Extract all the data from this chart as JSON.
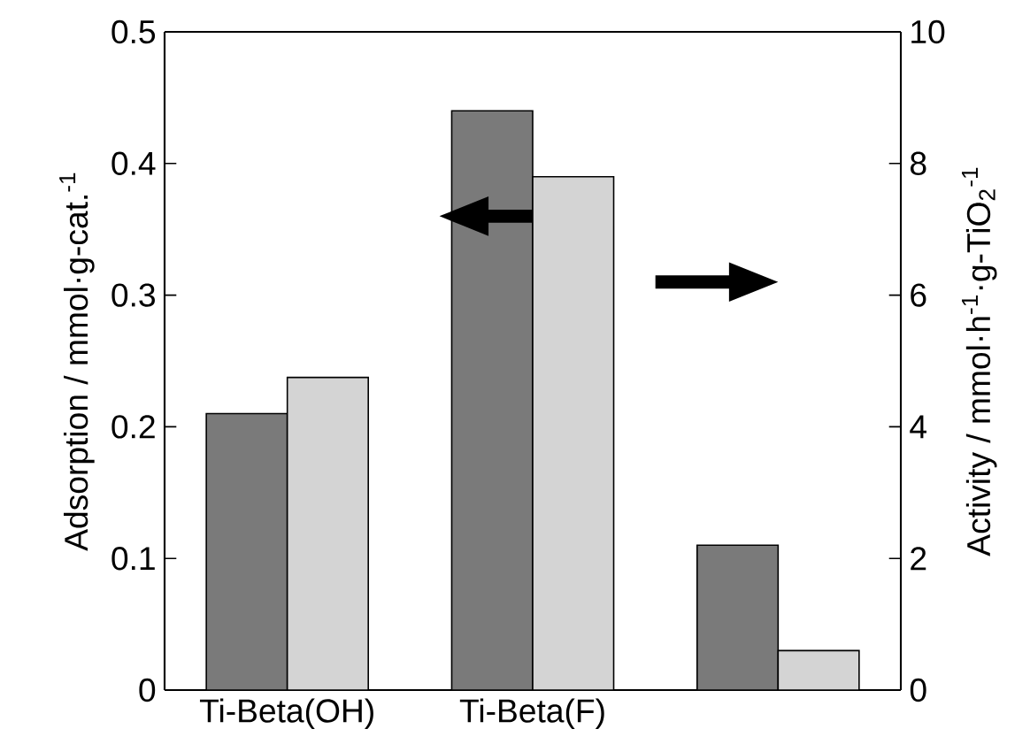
{
  "chart_data": {
    "type": "bar",
    "categories": [
      "Ti-Beta(OH)",
      "Ti-Beta(F)",
      null
    ],
    "series": [
      {
        "color": "#7a7a7a",
        "values": [
          0.21,
          0.44,
          0.11
        ]
      },
      {
        "color": "#d4d4d4",
        "values": [
          4.75,
          7.8,
          0.6
        ],
        "axis": "y2"
      }
    ],
    "ylabel": "Adsorption / mmol·g-cat.$^{-1}$",
    "y2label": "Activity / mmol·h$^{-1}$·g-TiO$_{2}$$^{-1}$",
    "ylim": [
      0,
      0.5
    ],
    "yticks": [
      0,
      0.1,
      0.2,
      0.3,
      0.4,
      0.5
    ],
    "y2lim": [
      0,
      10
    ],
    "y2ticks": [
      0,
      2,
      4,
      6,
      8,
      10
    ]
  }
}
